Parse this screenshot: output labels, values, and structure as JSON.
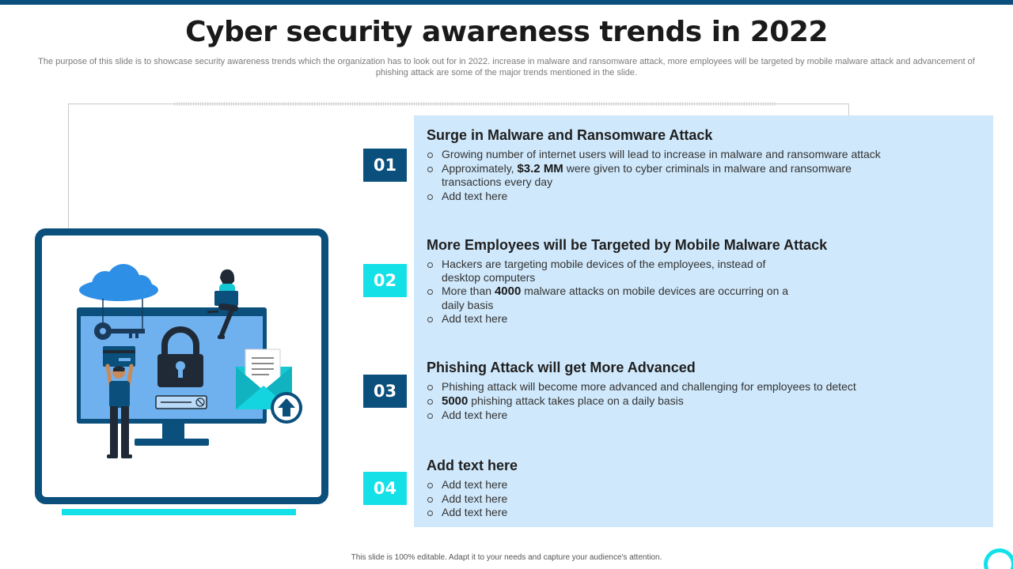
{
  "title": "Cyber security awareness trends in 2022",
  "subtitle": "The purpose of this slide is to showcase security awareness trends which the organization has to look out for in 2022. increase in malware and ransomware attack, more employees will be targeted by mobile malware attack and advancement of phishing attack are some of the major trends mentioned in the slide.",
  "colors": {
    "dark_blue": "#0b4f7c",
    "cyan": "#14e0e8",
    "panel": "#cfe8fb"
  },
  "illustration": {
    "icons": [
      "cloud-icon",
      "key-icon",
      "padlock-icon",
      "credit-card-icon",
      "envelope-icon",
      "upload-arrow-icon",
      "person-with-laptop-icon",
      "person-holding-card-icon",
      "monitor-icon"
    ]
  },
  "sections": [
    {
      "number": "01",
      "title": "Surge in Malware and Ransomware Attack",
      "bullets": [
        {
          "pre": "Growing number of internet users will lead to increase in malware and ransomware attack",
          "bold": "",
          "post": ""
        },
        {
          "pre": "Approximately, ",
          "bold": "$3.2 MM",
          "post": " were given to cyber criminals in malware and ransomware transactions every day"
        },
        {
          "pre": "Add text here",
          "bold": "",
          "post": ""
        }
      ]
    },
    {
      "number": "02",
      "title": "More Employees will be Targeted by Mobile Malware Attack",
      "bullets": [
        {
          "pre": "Hackers are targeting mobile devices of the employees, instead of desktop computers",
          "bold": "",
          "post": ""
        },
        {
          "pre": "More than ",
          "bold": "4000",
          "post": " malware attacks on mobile devices are occurring on a daily basis"
        },
        {
          "pre": "Add text here",
          "bold": "",
          "post": ""
        }
      ]
    },
    {
      "number": "03",
      "title": "Phishing Attack will get More Advanced",
      "bullets": [
        {
          "pre": "Phishing attack will become more advanced and challenging for employees to detect",
          "bold": "",
          "post": ""
        },
        {
          "pre": "",
          "bold": "5000",
          "post": " phishing attack takes place on a daily basis"
        },
        {
          "pre": "Add text here",
          "bold": "",
          "post": ""
        }
      ]
    },
    {
      "number": "04",
      "title": "Add text here",
      "bullets": [
        {
          "pre": "Add text here",
          "bold": "",
          "post": ""
        },
        {
          "pre": "Add text here",
          "bold": "",
          "post": ""
        },
        {
          "pre": "Add text here",
          "bold": "",
          "post": ""
        }
      ]
    }
  ],
  "footer": "This slide is 100% editable. Adapt it to your needs and capture your audience's attention."
}
